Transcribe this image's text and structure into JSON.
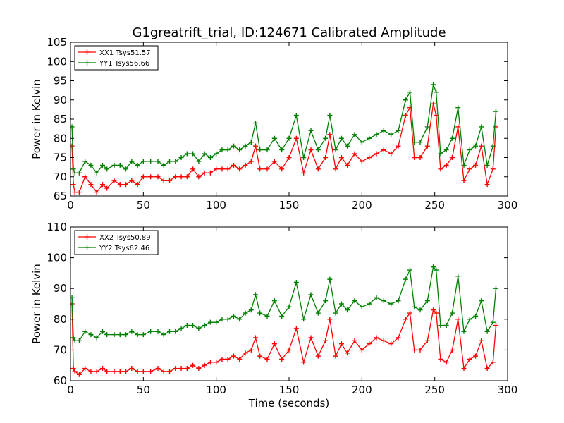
{
  "figure": {
    "title": "G1greatrift_trial, ID:124671 Calibrated Amplitude",
    "xlabel": "Time (seconds)"
  },
  "colors": {
    "xx": "#ff0000",
    "yy": "#008000",
    "axes": "#000000",
    "background": "#ffffff"
  },
  "chart_data": [
    {
      "type": "line",
      "ylabel": "Power in Kelvin",
      "xlim": [
        0,
        300
      ],
      "ylim": [
        65,
        105
      ],
      "x_ticks": [
        "0",
        "50",
        "100",
        "150",
        "200",
        "250",
        "300"
      ],
      "y_ticks": [
        "65",
        "70",
        "75",
        "80",
        "85",
        "90",
        "95",
        "100",
        "105"
      ],
      "legend_position": "top-left",
      "grid": false,
      "marker": "+",
      "series": [
        {
          "name": "XX1 Tsys51.57",
          "x": [
            1,
            2,
            3,
            6,
            10,
            14,
            18,
            22,
            25,
            30,
            34,
            38,
            42,
            46,
            50,
            55,
            60,
            64,
            68,
            72,
            76,
            80,
            84,
            88,
            92,
            96,
            100,
            104,
            108,
            112,
            116,
            120,
            124,
            127,
            130,
            135,
            140,
            145,
            150,
            155,
            160,
            165,
            170,
            175,
            178,
            182,
            186,
            190,
            195,
            200,
            205,
            210,
            215,
            220,
            225,
            230,
            233,
            236,
            240,
            245,
            249,
            251,
            254,
            258,
            262,
            266,
            270,
            274,
            278,
            282,
            286,
            290,
            292
          ],
          "y": [
            78,
            68,
            66,
            66,
            70,
            68,
            66,
            68,
            67,
            69,
            68,
            68,
            69,
            68,
            70,
            70,
            70,
            69,
            69,
            70,
            70,
            70,
            72,
            70,
            71,
            71,
            72,
            72,
            72,
            73,
            72,
            73,
            74,
            78,
            72,
            72,
            74,
            72,
            75,
            80,
            71,
            77,
            72,
            75,
            81,
            72,
            75,
            73,
            76,
            74,
            75,
            76,
            77,
            76,
            78,
            86,
            88,
            75,
            75,
            78,
            89,
            86,
            72,
            73,
            75,
            83,
            69,
            72,
            73,
            78,
            68,
            72,
            83
          ]
        },
        {
          "name": "YY1 Tsys56.66",
          "x": [
            1,
            2,
            3,
            6,
            10,
            14,
            18,
            22,
            25,
            30,
            34,
            38,
            42,
            46,
            50,
            55,
            60,
            64,
            68,
            72,
            76,
            80,
            84,
            88,
            92,
            96,
            100,
            104,
            108,
            112,
            116,
            120,
            124,
            127,
            130,
            135,
            140,
            145,
            150,
            155,
            160,
            165,
            170,
            175,
            178,
            182,
            186,
            190,
            195,
            200,
            205,
            210,
            215,
            220,
            225,
            230,
            233,
            236,
            240,
            245,
            249,
            251,
            254,
            258,
            262,
            266,
            270,
            274,
            278,
            282,
            286,
            290,
            292
          ],
          "y": [
            83,
            72,
            71,
            71,
            74,
            73,
            71,
            73,
            72,
            73,
            73,
            72,
            74,
            73,
            74,
            74,
            74,
            73,
            74,
            74,
            75,
            76,
            76,
            74,
            76,
            75,
            76,
            77,
            77,
            78,
            77,
            78,
            79,
            84,
            77,
            77,
            80,
            77,
            80,
            86,
            75,
            82,
            77,
            80,
            86,
            77,
            80,
            78,
            81,
            79,
            80,
            81,
            82,
            81,
            82,
            90,
            92,
            79,
            79,
            83,
            94,
            92,
            76,
            77,
            80,
            88,
            73,
            77,
            78,
            83,
            73,
            78,
            87
          ]
        }
      ]
    },
    {
      "type": "line",
      "ylabel": "Power in Kelvin",
      "xlabel": "Time (seconds)",
      "xlim": [
        0,
        300
      ],
      "ylim": [
        60,
        110
      ],
      "x_ticks": [
        "0",
        "50",
        "100",
        "150",
        "200",
        "250",
        "300"
      ],
      "y_ticks": [
        "60",
        "70",
        "80",
        "90",
        "100",
        "110"
      ],
      "legend_position": "top-left",
      "grid": false,
      "marker": "+",
      "series": [
        {
          "name": "XX2 Tsys50.89",
          "x": [
            1,
            2,
            3,
            6,
            10,
            14,
            18,
            22,
            25,
            30,
            34,
            38,
            42,
            46,
            50,
            55,
            60,
            64,
            68,
            72,
            76,
            80,
            84,
            88,
            92,
            96,
            100,
            104,
            108,
            112,
            116,
            120,
            124,
            127,
            130,
            135,
            140,
            145,
            150,
            155,
            160,
            165,
            170,
            175,
            178,
            182,
            186,
            190,
            195,
            200,
            205,
            210,
            215,
            220,
            225,
            230,
            233,
            236,
            240,
            245,
            249,
            251,
            254,
            258,
            262,
            266,
            270,
            274,
            278,
            282,
            286,
            290,
            292
          ],
          "y": [
            85,
            64,
            63,
            62,
            64,
            63,
            63,
            64,
            63,
            63,
            63,
            63,
            64,
            63,
            63,
            63,
            64,
            63,
            63,
            64,
            64,
            64,
            65,
            64,
            65,
            66,
            66,
            67,
            67,
            68,
            67,
            69,
            70,
            74,
            68,
            67,
            72,
            67,
            70,
            77,
            66,
            74,
            68,
            73,
            80,
            68,
            72,
            69,
            73,
            70,
            72,
            74,
            73,
            72,
            74,
            80,
            82,
            70,
            70,
            73,
            83,
            82,
            67,
            66,
            70,
            80,
            64,
            67,
            68,
            73,
            64,
            66,
            78
          ]
        },
        {
          "name": "YY2 Tsys62.46",
          "x": [
            1,
            2,
            3,
            6,
            10,
            14,
            18,
            22,
            25,
            30,
            34,
            38,
            42,
            46,
            50,
            55,
            60,
            64,
            68,
            72,
            76,
            80,
            84,
            88,
            92,
            96,
            100,
            104,
            108,
            112,
            116,
            120,
            124,
            127,
            130,
            135,
            140,
            145,
            150,
            155,
            160,
            165,
            170,
            175,
            178,
            182,
            186,
            190,
            195,
            200,
            205,
            210,
            215,
            220,
            225,
            230,
            233,
            236,
            240,
            245,
            249,
            251,
            254,
            258,
            262,
            266,
            270,
            274,
            278,
            282,
            286,
            290,
            292
          ],
          "y": [
            87,
            74,
            73,
            73,
            76,
            75,
            74,
            76,
            75,
            75,
            75,
            75,
            76,
            75,
            75,
            76,
            76,
            75,
            76,
            76,
            77,
            78,
            78,
            77,
            78,
            79,
            79,
            80,
            80,
            81,
            80,
            82,
            83,
            88,
            82,
            81,
            86,
            81,
            84,
            92,
            80,
            88,
            82,
            86,
            93,
            82,
            85,
            83,
            86,
            84,
            85,
            87,
            86,
            85,
            86,
            93,
            96,
            84,
            83,
            86,
            97,
            96,
            78,
            78,
            82,
            94,
            76,
            80,
            81,
            86,
            76,
            79,
            90
          ]
        }
      ]
    }
  ]
}
